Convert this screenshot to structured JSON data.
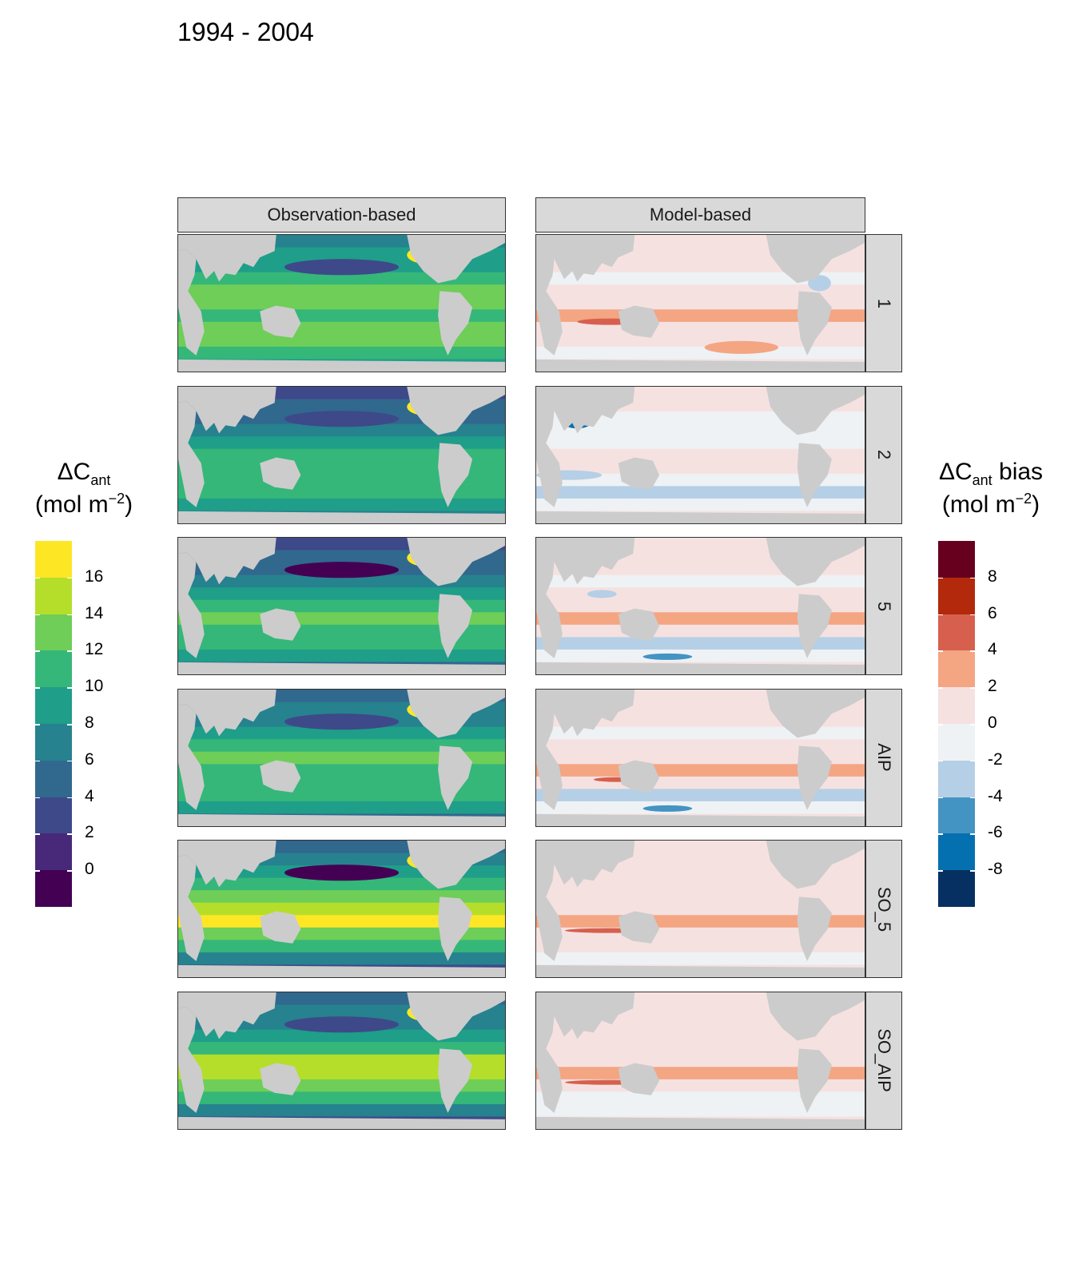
{
  "title": "1994 - 2004",
  "columns": [
    "Observation-based",
    "Model-based"
  ],
  "rows": [
    "1",
    "2",
    "5",
    "AIP",
    "SO_5",
    "SO_AIP"
  ],
  "legend_left": {
    "title_main": "ΔC",
    "title_sub": "ant",
    "title_after": "",
    "unit": "(mol m",
    "unit_sup": "−2",
    "unit_close": ")",
    "labels": [
      "16",
      "14",
      "12",
      "10",
      "8",
      "6",
      "4",
      "2",
      "0"
    ],
    "colors": [
      "#fde725",
      "#b5de2b",
      "#6ece58",
      "#35b779",
      "#1f9e89",
      "#26828e",
      "#31688e",
      "#3e4989",
      "#482878",
      "#440154"
    ]
  },
  "legend_right": {
    "title_main": "ΔC",
    "title_sub": "ant",
    "title_after": " bias",
    "unit": "(mol m",
    "unit_sup": "−2",
    "unit_close": ")",
    "labels": [
      "8",
      "6",
      "4",
      "2",
      "0",
      "-2",
      "-4",
      "-6",
      "-8"
    ],
    "colors": [
      "#67001f",
      "#b2290b",
      "#d6604d",
      "#f4a582",
      "#f6e1e1",
      "#eef2f5",
      "#b5cfe6",
      "#4393c3",
      "#0570b0",
      "#053061"
    ]
  },
  "colors": {
    "land": "#cccccc",
    "strip": "#d9d9d9",
    "bias_zero": "#f5e6e6"
  }
}
